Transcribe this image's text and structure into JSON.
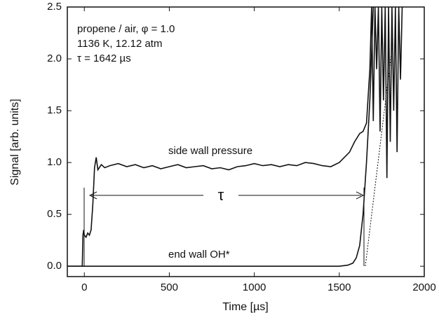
{
  "chart_data": {
    "type": "line",
    "x_label": "Time [µs]",
    "y_label": "Signal [arb. units]",
    "annotations": [
      "propene / air, φ = 1.0",
      "1136 K, 12.12 atm",
      "τ = 1642 µs"
    ],
    "tau_label": "τ",
    "xlim": [
      -100,
      2000
    ],
    "xticks": [
      0,
      500,
      1000,
      1500,
      2000
    ],
    "ylim": [
      -0.1,
      2.5
    ],
    "yticks": [
      {
        "value": 0,
        "label": "0.0"
      },
      0.5,
      {
        "value": 1,
        "label": "1.0"
      },
      1.5,
      {
        "value": 2,
        "label": "2.0"
      },
      2.5
    ],
    "series": [
      {
        "name": "side wall pressure",
        "color": "#111111",
        "x": [
          -100,
          -20,
          -12,
          -8,
          -4,
          0,
          10,
          20,
          30,
          40,
          50,
          60,
          70,
          80,
          100,
          120,
          150,
          200,
          250,
          300,
          350,
          400,
          450,
          500,
          550,
          600,
          650,
          700,
          750,
          800,
          850,
          900,
          950,
          1000,
          1050,
          1100,
          1150,
          1200,
          1250,
          1300,
          1350,
          1400,
          1450,
          1500,
          1530,
          1560,
          1590,
          1620,
          1640,
          1660,
          1680,
          1690,
          1700,
          1710,
          1720,
          1730,
          1740,
          1750,
          1760,
          1770,
          1780,
          1790,
          1800,
          1810,
          1820,
          1830,
          1840,
          1850,
          1860,
          1870
        ],
        "values": [
          0,
          0,
          0,
          0.3,
          0.35,
          0.3,
          0.28,
          0.32,
          0.3,
          0.35,
          0.6,
          0.95,
          1.05,
          0.93,
          0.98,
          0.95,
          0.97,
          0.99,
          0.96,
          0.98,
          0.95,
          0.97,
          0.94,
          0.96,
          0.98,
          0.95,
          0.96,
          0.97,
          0.94,
          0.95,
          0.93,
          0.96,
          0.97,
          0.99,
          0.97,
          0.98,
          0.96,
          0.98,
          0.97,
          1.0,
          0.99,
          0.97,
          0.96,
          1.0,
          1.05,
          1.1,
          1.2,
          1.28,
          1.3,
          1.38,
          1.9,
          2.5,
          1.4,
          2.5,
          1.9,
          2.5,
          1.3,
          2.5,
          1.6,
          2.5,
          0.85,
          2.5,
          1.2,
          2.5,
          1.5,
          2.5,
          1.1,
          2.5,
          1.8,
          2.5
        ]
      },
      {
        "name": "end wall OH*",
        "color": "#111111",
        "x": [
          -100,
          1500,
          1550,
          1580,
          1600,
          1620,
          1640,
          1660,
          1680,
          1700
        ],
        "values": [
          0,
          0,
          0.01,
          0.03,
          0.08,
          0.2,
          0.5,
          1.0,
          1.6,
          2.5
        ]
      }
    ]
  }
}
